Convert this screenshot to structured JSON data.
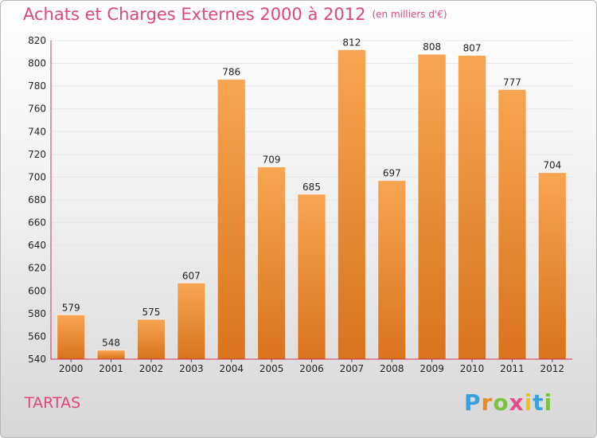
{
  "title": "Achats et Charges Externes 2000 à 2012",
  "unit": "(en milliers d'€)",
  "commune": "TARTAS",
  "logo": {
    "text": "Proxiti",
    "letters": [
      "P",
      "r",
      "o",
      "x",
      "i",
      "t",
      "i"
    ]
  },
  "colors": {
    "title": "#e0457b",
    "bar_top": "#f7a552",
    "bar_bottom": "#d9731c",
    "axis_line": "#cc3355",
    "grid": "#e6e6e6"
  },
  "chart_data": {
    "type": "bar",
    "categories": [
      "2000",
      "2001",
      "2002",
      "2003",
      "2004",
      "2005",
      "2006",
      "2007",
      "2008",
      "2009",
      "2010",
      "2011",
      "2012"
    ],
    "values": [
      579,
      548,
      575,
      607,
      786,
      709,
      685,
      812,
      697,
      808,
      807,
      777,
      704
    ],
    "ylim": [
      540,
      820
    ],
    "yticks": [
      540,
      560,
      580,
      600,
      620,
      640,
      660,
      680,
      700,
      720,
      740,
      760,
      780,
      800,
      820
    ],
    "grid": true,
    "data_labels": true
  }
}
